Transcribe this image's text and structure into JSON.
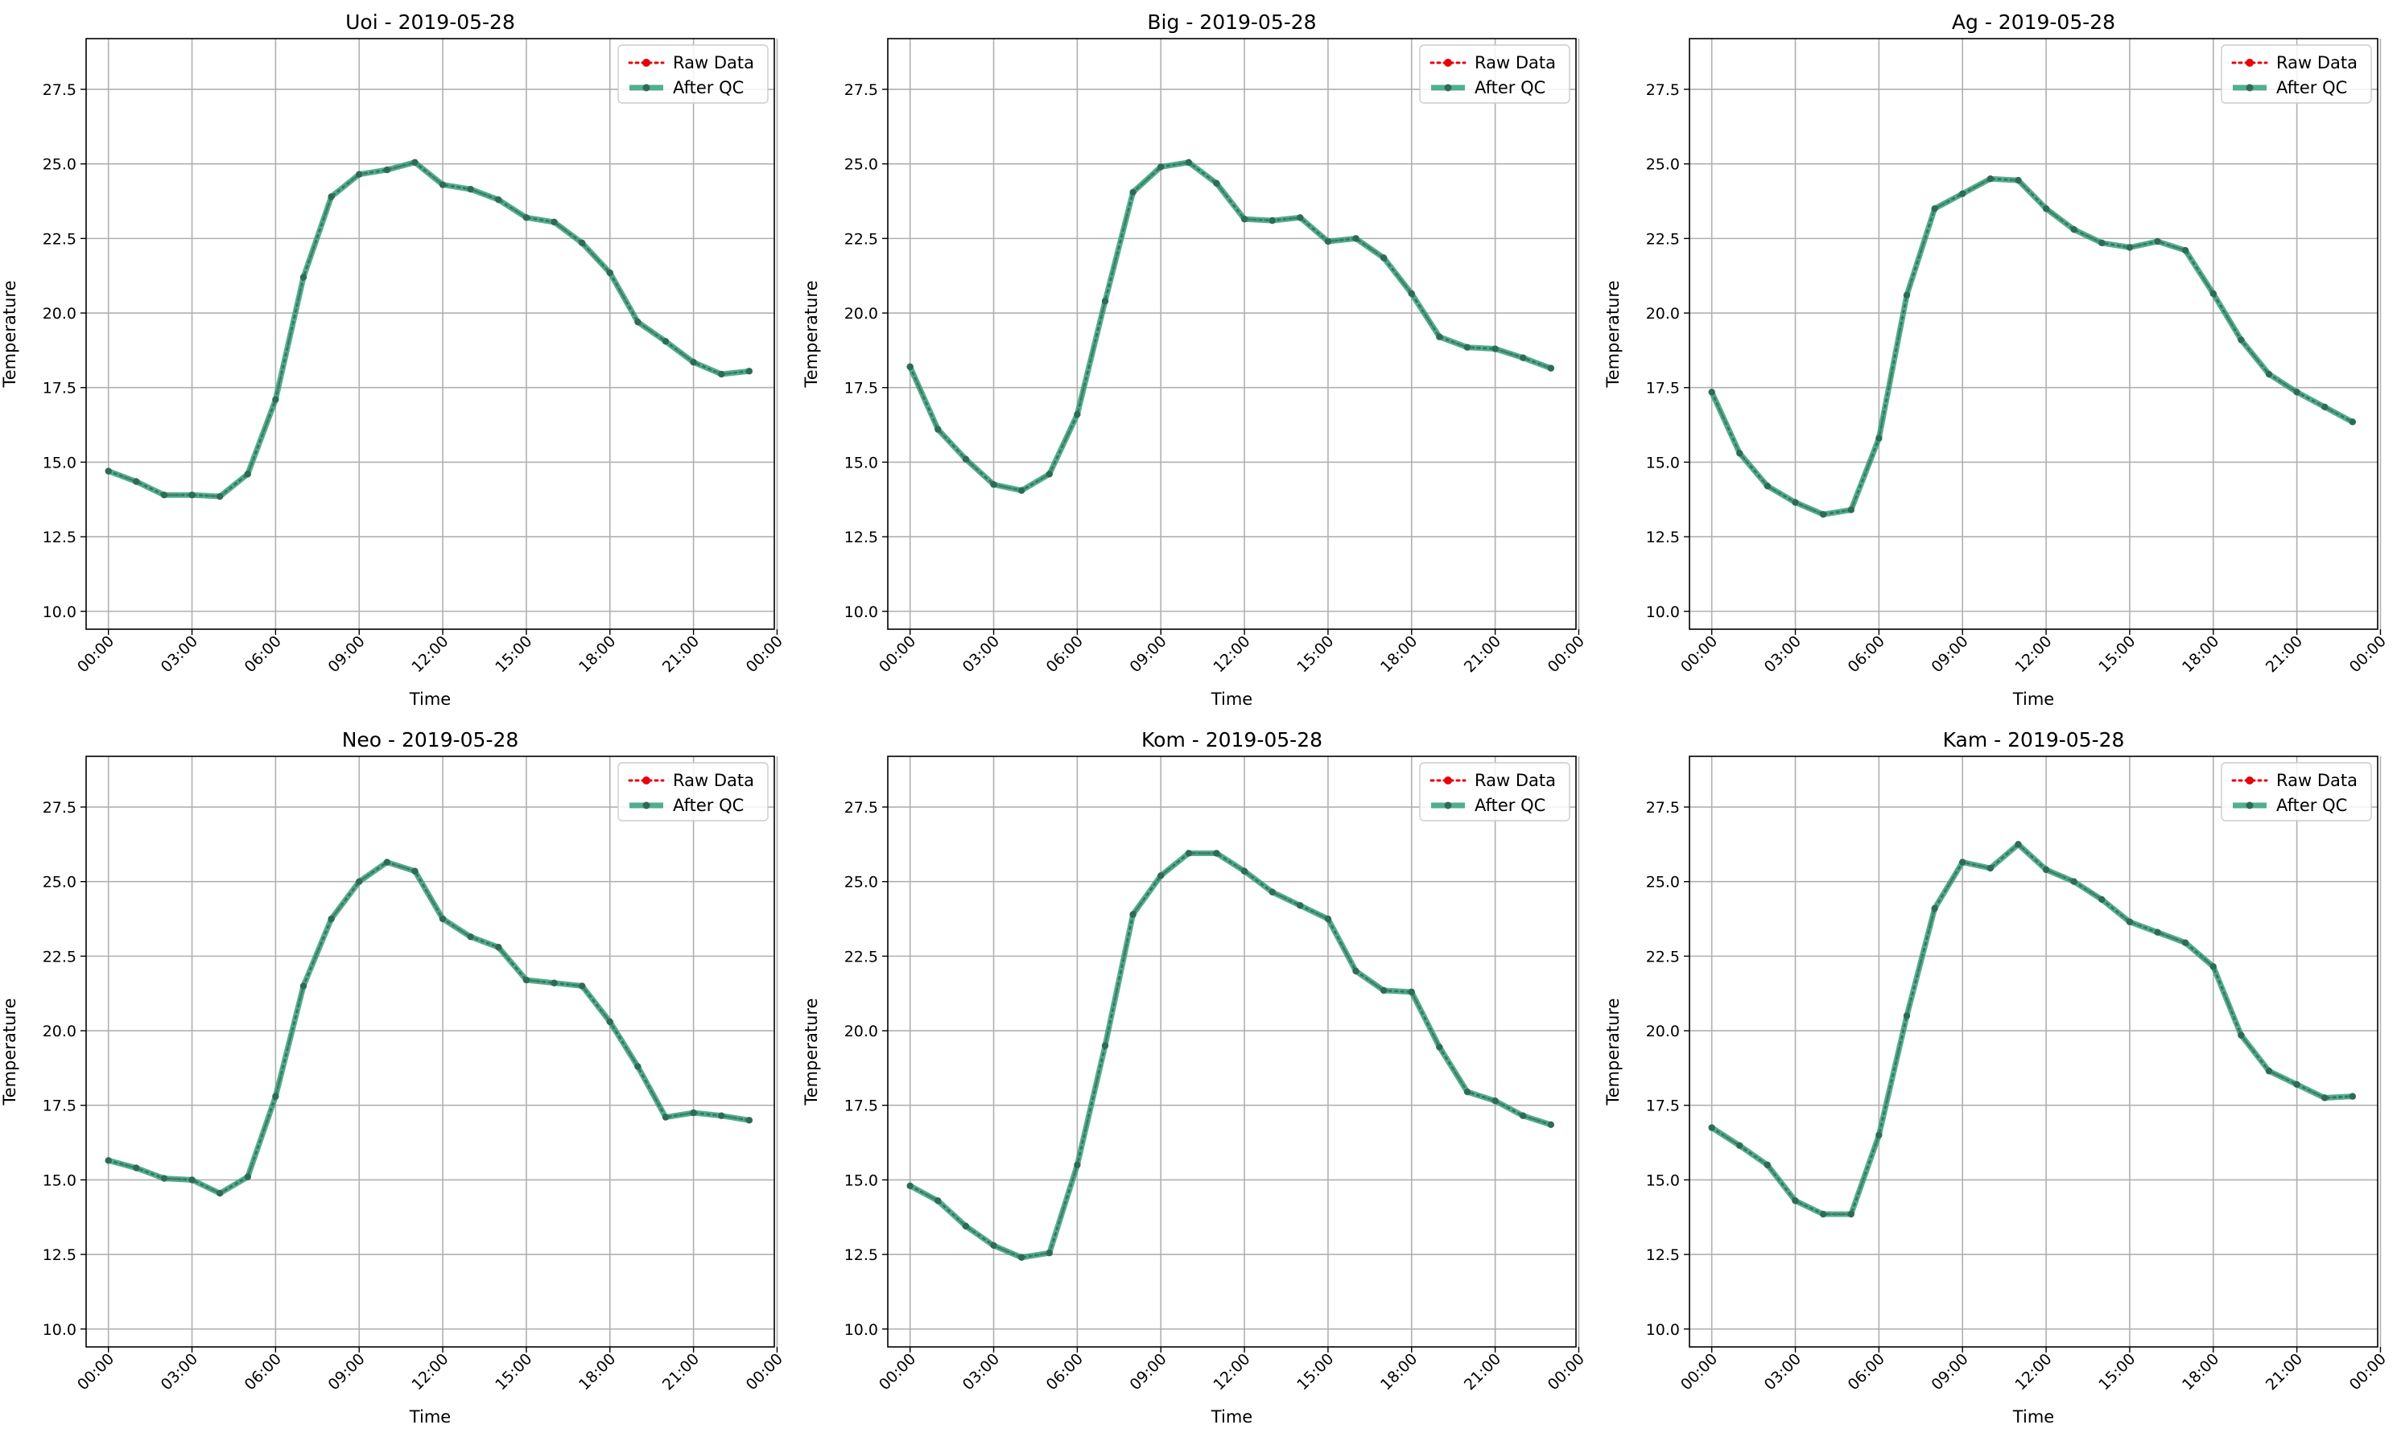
{
  "figure": {
    "date": "2019-05-28",
    "y_range": [
      9.4,
      29.2
    ],
    "x_range": [
      -0.8,
      23.9
    ],
    "y_ticks": [
      10.0,
      12.5,
      15.0,
      17.5,
      20.0,
      22.5,
      25.0,
      27.5
    ],
    "y_tick_labels": [
      "10.0",
      "12.5",
      "15.0",
      "17.5",
      "20.0",
      "22.5",
      "25.0",
      "27.5"
    ],
    "x_ticks": [
      0,
      3,
      6,
      9,
      12,
      15,
      18,
      21,
      24
    ],
    "x_tick_labels": [
      "00:00",
      "03:00",
      "06:00",
      "09:00",
      "12:00",
      "15:00",
      "18:00",
      "21:00",
      "00:00"
    ],
    "xlabel": "Time",
    "ylabel": "Temperature",
    "legend": {
      "placement": "top-right",
      "entries": [
        "Raw Data",
        "After QC"
      ]
    },
    "colors": {
      "raw": "#e8000b",
      "qc": "#2a9d78",
      "qc_marker": "#2e6b55",
      "grid": "#b0b0b0"
    }
  },
  "chart_data": [
    {
      "type": "line",
      "title": "Uoi - 2019-05-28",
      "xlabel": "Time",
      "ylabel": "Temperature",
      "grid": true,
      "x": [
        0,
        1,
        2,
        3,
        4,
        5,
        6,
        7,
        8,
        9,
        10,
        11,
        12,
        13,
        14,
        15,
        16,
        17,
        18,
        19,
        20,
        21,
        22,
        23
      ],
      "series": [
        {
          "name": "Raw Data",
          "values": [
            14.7,
            14.35,
            13.9,
            13.9,
            13.85,
            14.6,
            17.1,
            21.2,
            23.9,
            24.65,
            24.8,
            25.05,
            24.3,
            24.15,
            23.8,
            23.2,
            23.05,
            22.35,
            21.35,
            19.7,
            19.05,
            18.35,
            17.95,
            18.05
          ]
        },
        {
          "name": "After QC",
          "values": [
            14.7,
            14.35,
            13.9,
            13.9,
            13.85,
            14.6,
            17.1,
            21.2,
            23.9,
            24.65,
            24.8,
            25.05,
            24.3,
            24.15,
            23.8,
            23.2,
            23.05,
            22.35,
            21.35,
            19.7,
            19.05,
            18.35,
            17.95,
            18.05
          ]
        }
      ]
    },
    {
      "type": "line",
      "title": "Big - 2019-05-28",
      "xlabel": "Time",
      "ylabel": "Temperature",
      "grid": true,
      "x": [
        0,
        1,
        2,
        3,
        4,
        5,
        6,
        7,
        8,
        9,
        10,
        11,
        12,
        13,
        14,
        15,
        16,
        17,
        18,
        19,
        20,
        21,
        22,
        23
      ],
      "series": [
        {
          "name": "Raw Data",
          "values": [
            18.2,
            16.1,
            15.1,
            14.25,
            14.05,
            14.6,
            16.6,
            20.4,
            24.05,
            24.9,
            25.05,
            24.35,
            23.15,
            23.1,
            23.2,
            22.4,
            22.5,
            21.85,
            20.65,
            19.2,
            18.85,
            18.8,
            18.5,
            18.15
          ]
        },
        {
          "name": "After QC",
          "values": [
            18.2,
            16.1,
            15.1,
            14.25,
            14.05,
            14.6,
            16.6,
            20.4,
            24.05,
            24.9,
            25.05,
            24.35,
            23.15,
            23.1,
            23.2,
            22.4,
            22.5,
            21.85,
            20.65,
            19.2,
            18.85,
            18.8,
            18.5,
            18.15
          ]
        }
      ]
    },
    {
      "type": "line",
      "title": "Ag - 2019-05-28",
      "xlabel": "Time",
      "ylabel": "Temperature",
      "grid": true,
      "x": [
        0,
        1,
        2,
        3,
        4,
        5,
        6,
        7,
        8,
        9,
        10,
        11,
        12,
        13,
        14,
        15,
        16,
        17,
        18,
        19,
        20,
        21,
        22,
        23
      ],
      "series": [
        {
          "name": "Raw Data",
          "values": [
            17.35,
            15.3,
            14.2,
            13.65,
            13.25,
            13.4,
            15.8,
            20.6,
            23.5,
            24.0,
            24.5,
            24.45,
            23.5,
            22.8,
            22.35,
            22.2,
            22.4,
            22.1,
            20.65,
            19.1,
            17.95,
            17.35,
            16.85,
            16.35
          ]
        },
        {
          "name": "After QC",
          "values": [
            17.35,
            15.3,
            14.2,
            13.65,
            13.25,
            13.4,
            15.8,
            20.6,
            23.5,
            24.0,
            24.5,
            24.45,
            23.5,
            22.8,
            22.35,
            22.2,
            22.4,
            22.1,
            20.65,
            19.1,
            17.95,
            17.35,
            16.85,
            16.35
          ]
        }
      ]
    },
    {
      "type": "line",
      "title": "Neo - 2019-05-28",
      "xlabel": "Time",
      "ylabel": "Temperature",
      "grid": true,
      "x": [
        0,
        1,
        2,
        3,
        4,
        5,
        6,
        7,
        8,
        9,
        10,
        11,
        12,
        13,
        14,
        15,
        16,
        17,
        18,
        19,
        20,
        21,
        22,
        23
      ],
      "series": [
        {
          "name": "Raw Data",
          "values": [
            15.65,
            15.4,
            15.05,
            15.0,
            14.55,
            15.1,
            17.8,
            21.5,
            23.75,
            25.0,
            25.65,
            25.35,
            23.75,
            23.15,
            22.8,
            21.7,
            21.6,
            21.5,
            20.3,
            18.8,
            17.1,
            17.25,
            17.15,
            17.0
          ]
        },
        {
          "name": "After QC",
          "values": [
            15.65,
            15.4,
            15.05,
            15.0,
            14.55,
            15.1,
            17.8,
            21.5,
            23.75,
            25.0,
            25.65,
            25.35,
            23.75,
            23.15,
            22.8,
            21.7,
            21.6,
            21.5,
            20.3,
            18.8,
            17.1,
            17.25,
            17.15,
            17.0
          ]
        }
      ]
    },
    {
      "type": "line",
      "title": "Kom - 2019-05-28",
      "xlabel": "Time",
      "ylabel": "Temperature",
      "grid": true,
      "x": [
        0,
        1,
        2,
        3,
        4,
        5,
        6,
        7,
        8,
        9,
        10,
        11,
        12,
        13,
        14,
        15,
        16,
        17,
        18,
        19,
        20,
        21,
        22,
        23
      ],
      "series": [
        {
          "name": "Raw Data",
          "values": [
            14.8,
            14.3,
            13.45,
            12.8,
            12.4,
            12.55,
            15.5,
            19.5,
            23.9,
            25.2,
            25.95,
            25.95,
            25.35,
            24.65,
            24.2,
            23.75,
            22.0,
            21.35,
            21.3,
            19.45,
            17.95,
            17.65,
            17.15,
            16.85
          ]
        },
        {
          "name": "After QC",
          "values": [
            14.8,
            14.3,
            13.45,
            12.8,
            12.4,
            12.55,
            15.5,
            19.5,
            23.9,
            25.2,
            25.95,
            25.95,
            25.35,
            24.65,
            24.2,
            23.75,
            22.0,
            21.35,
            21.3,
            19.45,
            17.95,
            17.65,
            17.15,
            16.85
          ]
        }
      ]
    },
    {
      "type": "line",
      "title": "Kam - 2019-05-28",
      "xlabel": "Time",
      "ylabel": "Temperature",
      "grid": true,
      "x": [
        0,
        1,
        2,
        3,
        4,
        5,
        6,
        7,
        8,
        9,
        10,
        11,
        12,
        13,
        14,
        15,
        16,
        17,
        18,
        19,
        20,
        21,
        22,
        23
      ],
      "series": [
        {
          "name": "Raw Data",
          "values": [
            16.75,
            16.15,
            15.5,
            14.3,
            13.85,
            13.85,
            16.5,
            20.5,
            24.1,
            25.65,
            25.45,
            26.25,
            25.4,
            25.0,
            24.4,
            23.65,
            23.3,
            22.95,
            22.15,
            19.85,
            18.65,
            18.2,
            17.75,
            17.8
          ]
        },
        {
          "name": "After QC",
          "values": [
            16.75,
            16.15,
            15.5,
            14.3,
            13.85,
            13.85,
            16.5,
            20.5,
            24.1,
            25.65,
            25.45,
            26.25,
            25.4,
            25.0,
            24.4,
            23.65,
            23.3,
            22.95,
            22.15,
            19.85,
            18.65,
            18.2,
            17.75,
            17.8
          ]
        }
      ]
    }
  ]
}
